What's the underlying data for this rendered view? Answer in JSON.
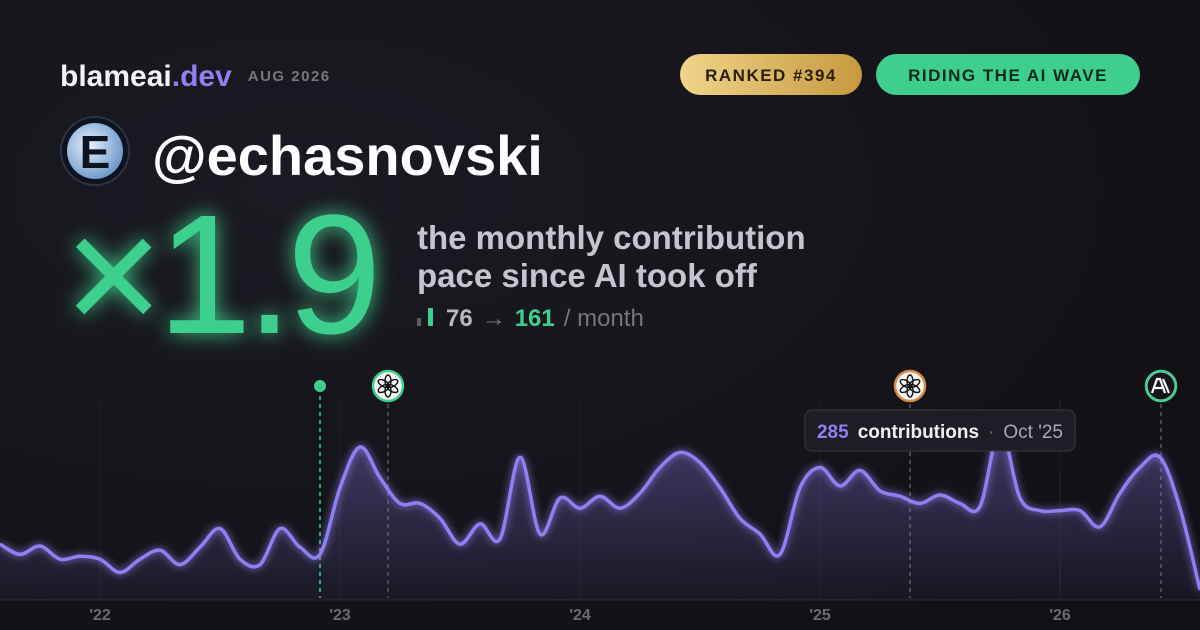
{
  "brand": {
    "name": "blameai",
    "tld": ".dev",
    "date": "AUG 2026"
  },
  "badges": {
    "rank": "RANKED #394",
    "status": "RIDING THE AI WAVE"
  },
  "user": {
    "avatar_letter": "E",
    "handle": "@echasnovski"
  },
  "headline": {
    "multiplier": "×1.9",
    "line1": "the monthly contribution",
    "line2": "pace since AI took off"
  },
  "stats": {
    "before": "76",
    "arrow": "→",
    "after": "161",
    "unit": "/ month"
  },
  "chart_data": {
    "type": "line",
    "categories": [
      null,
      null,
      null,
      null,
      null,
      "'22",
      null,
      null,
      null,
      null,
      null,
      null,
      null,
      null,
      null,
      null,
      null,
      "'23",
      null,
      null,
      null,
      null,
      null,
      null,
      null,
      null,
      null,
      null,
      null,
      "'24",
      null,
      null,
      null,
      null,
      null,
      null,
      null,
      null,
      null,
      null,
      null,
      "'25",
      null,
      null,
      null,
      null,
      null,
      null,
      null,
      null,
      null,
      null,
      null,
      "'26",
      null,
      null,
      null,
      null,
      null,
      null,
      null
    ],
    "values": [
      93,
      76,
      90,
      68,
      73,
      68,
      46,
      68,
      83,
      59,
      88,
      119,
      68,
      59,
      119,
      88,
      76,
      187,
      255,
      204,
      161,
      161,
      136,
      93,
      127,
      102,
      238,
      110,
      170,
      153,
      173,
      153,
      178,
      221,
      246,
      229,
      187,
      136,
      110,
      76,
      187,
      221,
      190,
      216,
      182,
      173,
      161,
      175,
      161,
      156,
      285,
      170,
      149,
      149,
      149,
      122,
      178,
      221,
      238,
      153,
      17
    ],
    "color": "#8f7ff2",
    "ylim": [
      0,
      300
    ],
    "grid": true,
    "tooltip": {
      "unit": "contributions",
      "separator": "·",
      "date": "Oct '25"
    }
  }
}
